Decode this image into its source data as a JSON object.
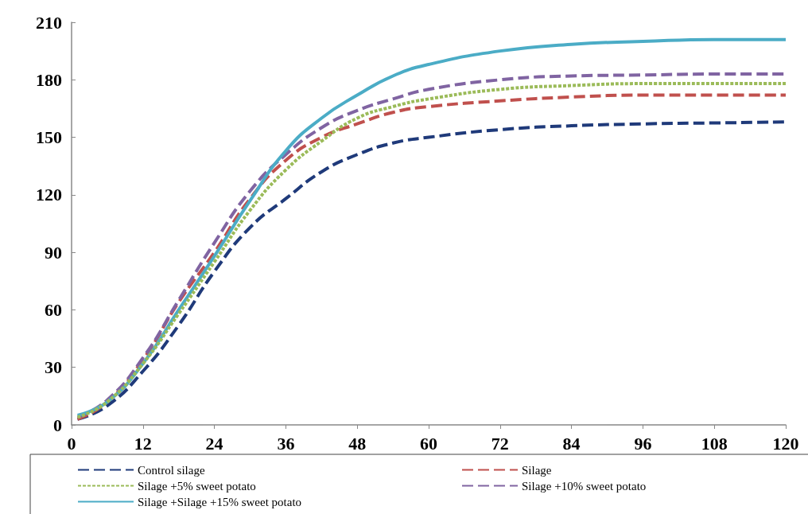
{
  "chart_data": {
    "type": "line",
    "x": [
      1,
      6,
      12,
      18,
      24,
      30,
      36,
      42,
      48,
      54,
      60,
      72,
      84,
      96,
      108,
      120
    ],
    "series": [
      {
        "name": "Control silage",
        "color": "#1f3a7a",
        "line_style": "dashed",
        "values": [
          3,
          10,
          28,
          52,
          80,
          103,
          118,
          132,
          141,
          147,
          150,
          154,
          156,
          157,
          157.5,
          158
        ]
      },
      {
        "name": "Silage",
        "color": "#c0504d",
        "line_style": "dashed",
        "values": [
          3,
          12,
          34,
          64,
          90,
          118,
          138,
          150,
          157,
          163,
          166,
          169,
          171,
          172,
          172,
          172
        ]
      },
      {
        "name": "Silage +5% sweet potato",
        "color": "#9bbb59",
        "line_style": "dotted",
        "values": [
          4,
          12,
          32,
          58,
          85,
          112,
          133,
          148,
          160,
          166,
          170,
          175,
          177,
          178,
          178,
          178
        ]
      },
      {
        "name": "Silage +10% sweet potato",
        "color": "#8064a2",
        "line_style": "dashed",
        "values": [
          4,
          13,
          35,
          65,
          95,
          122,
          141,
          155,
          164,
          170,
          175,
          180,
          182,
          182.5,
          183,
          183
        ]
      },
      {
        "name": "Silage +Silage +15% sweet potato",
        "color": "#4bacc6",
        "line_style": "solid",
        "values": [
          5,
          12,
          32,
          60,
          88,
          117,
          143,
          160,
          172,
          182,
          188,
          195,
          198.5,
          200,
          201,
          201
        ]
      }
    ],
    "xlim": [
      0,
      120
    ],
    "xticks": [
      0,
      12,
      24,
      36,
      48,
      60,
      72,
      84,
      96,
      108,
      120
    ],
    "ylim": [
      0,
      210
    ],
    "yticks": [
      0,
      30,
      60,
      90,
      120,
      150,
      180,
      210
    ],
    "grid": false,
    "legend": "bottom",
    "marker": "none"
  }
}
